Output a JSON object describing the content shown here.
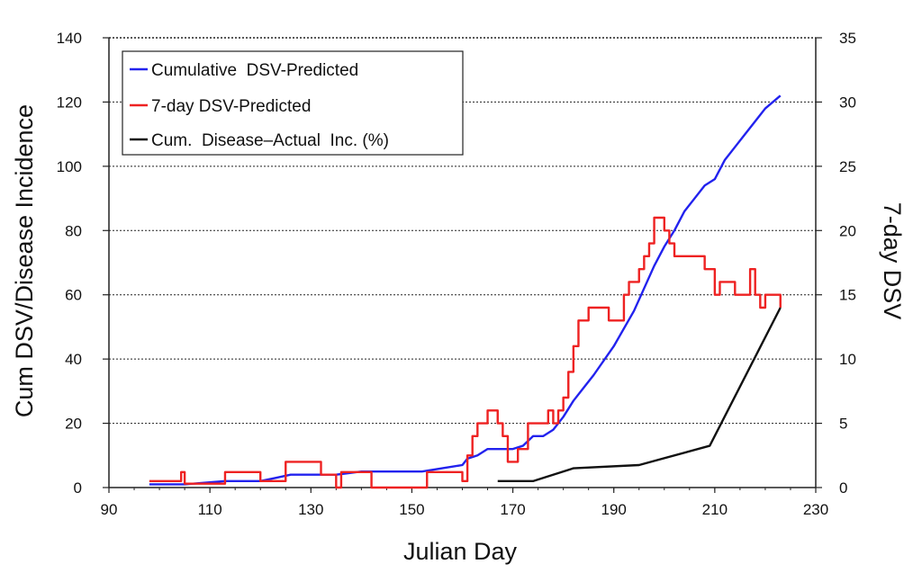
{
  "chart_data": {
    "type": "line",
    "xlabel": "Julian Day",
    "ylabel_left": "Cum DSV/Disease Incidence",
    "ylabel_right": "7-day DSV",
    "xlim": [
      90,
      230
    ],
    "ylim_left": [
      0,
      140
    ],
    "ylim_right": [
      0,
      35
    ],
    "x_ticks": [
      "90",
      "110",
      "130",
      "150",
      "170",
      "190",
      "210",
      "230"
    ],
    "y_ticks_left": [
      "0",
      "20",
      "40",
      "60",
      "80",
      "100",
      "120",
      "140"
    ],
    "y_ticks_right": [
      "0",
      "5",
      "10",
      "15",
      "20",
      "25",
      "30",
      "35"
    ],
    "grid": "horizontal dashed",
    "legend_position": "top-left",
    "legend": [
      "Cumulative  DSV-Predicted",
      "7-day DSV-Predicted",
      "Cum.  Disease–Actual  Inc. (%)"
    ],
    "colors": {
      "cumulative": "#2222ee",
      "seven_day": "#ee2222",
      "actual": "#111111",
      "grid": "#222222"
    },
    "series": [
      {
        "name": "Cumulative  DSV-Predicted",
        "axis": "left",
        "style": "line",
        "x": [
          98,
          105,
          113,
          120,
          123,
          126,
          134,
          135,
          140,
          152,
          156,
          160,
          161,
          163,
          165,
          168,
          170,
          172,
          174,
          176,
          178,
          180,
          182,
          184,
          186,
          190,
          194,
          196,
          198,
          200,
          202,
          204,
          206,
          208,
          210,
          212,
          214,
          216,
          218,
          220,
          223
        ],
        "y": [
          1,
          1,
          2,
          2,
          3,
          4,
          4,
          4,
          5,
          5,
          6,
          7,
          9,
          10,
          12,
          12,
          12,
          13,
          16,
          16,
          18,
          22,
          27,
          31,
          35,
          44,
          55,
          62,
          69,
          75,
          80,
          86,
          90,
          94,
          96,
          102,
          106,
          110,
          114,
          118,
          122
        ]
      },
      {
        "name": "7-day DSV-Predicted",
        "axis": "right",
        "style": "step",
        "x": [
          98,
          104,
          104.3,
          105,
          113,
          120,
          124,
          125,
          131,
          132,
          135,
          136,
          142,
          151,
          153,
          160,
          161,
          162,
          163,
          165,
          167,
          168,
          169,
          171,
          173,
          177,
          178,
          179,
          180,
          181,
          182,
          183,
          185,
          189,
          192,
          193,
          195,
          196,
          197,
          198,
          200,
          201,
          202,
          203,
          208,
          210,
          211,
          214,
          217,
          218,
          219,
          220,
          222,
          223
        ],
        "y": [
          0.5,
          0.5,
          1.2,
          0.3,
          1.2,
          0.5,
          0.5,
          2,
          2,
          1,
          0,
          1.2,
          0,
          0,
          1.2,
          0.5,
          2.5,
          4,
          5,
          6,
          5,
          4,
          2,
          3,
          5,
          6,
          5,
          6,
          7,
          9,
          11,
          13,
          14,
          13,
          15,
          16,
          17,
          18,
          19,
          21,
          20,
          19,
          18,
          18,
          17,
          15,
          16,
          15,
          17,
          15,
          14,
          15,
          15,
          14
        ]
      },
      {
        "name": "Cum.  Disease–Actual  Inc. (%)",
        "axis": "left",
        "style": "line",
        "x": [
          167,
          174,
          182,
          195,
          209,
          223
        ],
        "y": [
          2,
          2,
          6,
          7,
          13,
          56
        ]
      }
    ]
  }
}
